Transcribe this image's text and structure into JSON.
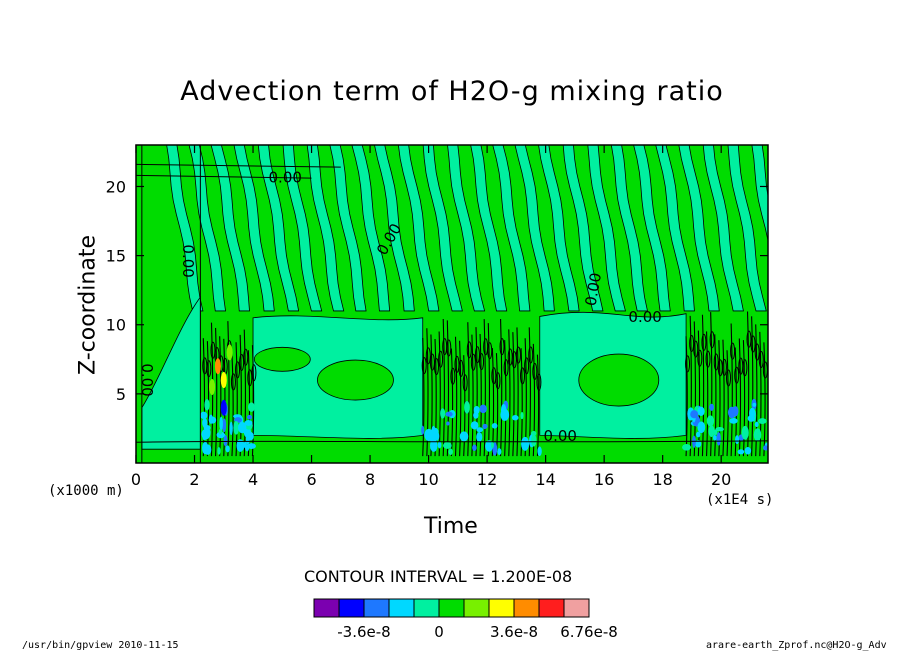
{
  "chart_data": {
    "type": "heatmap",
    "title": "Advection term of H2O-g mixing ratio",
    "xlabel": "Time",
    "ylabel": "Z-coordinate",
    "x_unit_label": "(x1E4 s)",
    "y_unit_label": "(x1000 m)",
    "xlim": [
      0,
      21.6
    ],
    "ylim": [
      0,
      23
    ],
    "x_ticks": [
      0,
      2,
      4,
      6,
      8,
      10,
      12,
      14,
      16,
      18,
      20
    ],
    "y_ticks": [
      5,
      10,
      15,
      20
    ],
    "contour_interval_text": "CONTOUR INTERVAL = 1.200E-08",
    "contour_labels": [
      "0.00"
    ],
    "colorbar": {
      "colors": [
        "#7b00b0",
        "#0000ff",
        "#1e78ff",
        "#00d8ff",
        "#00f0a0",
        "#00dc00",
        "#78f000",
        "#ffff00",
        "#ff8c00",
        "#ff1e1e",
        "#f0a0a0"
      ],
      "labels": [
        "-3.6e-8",
        "0",
        "3.6e-8",
        "6.76e-8"
      ]
    },
    "convective_episodes": [
      {
        "x_start": 2.3,
        "x_end": 4.0,
        "z_top": 10.5
      },
      {
        "x_start": 9.8,
        "x_end": 13.8,
        "z_top": 10.5
      },
      {
        "x_start": 18.8,
        "x_end": 21.6,
        "z_top": 11
      }
    ]
  },
  "footer": {
    "left": "/usr/bin/gpview  2010-11-15",
    "right": "arare-earth_Zprof.nc@H2O-g_Adv"
  }
}
